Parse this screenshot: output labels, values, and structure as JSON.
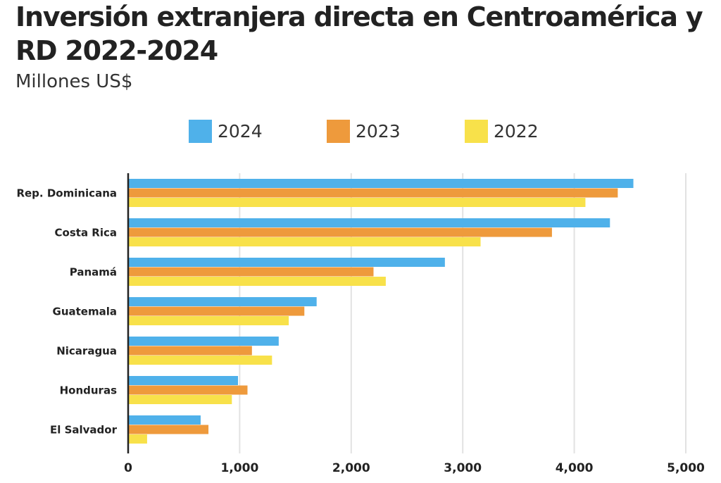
{
  "title": "Inversión extranjera directa en Centroamérica y RD 2022-2024",
  "subtitle": "Millones US$",
  "colors": {
    "2024": "#4fb1ea",
    "2023": "#ee9a3c",
    "2022": "#f8e14a",
    "axis": "#222222",
    "grid": "#e2e2e2"
  },
  "chart_data": {
    "type": "bar",
    "orientation": "horizontal",
    "title": "Inversión extranjera directa en Centroamérica y RD 2022-2024",
    "subtitle": "Millones US$",
    "categories": [
      "Rep. Dominicana",
      "Costa Rica",
      "Panamá",
      "Guatemala",
      "Nicaragua",
      "Honduras",
      "El Salvador"
    ],
    "series": [
      {
        "name": "2024",
        "values": [
          4530,
          4320,
          2840,
          1690,
          1350,
          985,
          650
        ]
      },
      {
        "name": "2023",
        "values": [
          4390,
          3800,
          2200,
          1580,
          1110,
          1070,
          720
        ]
      },
      {
        "name": "2022",
        "values": [
          4100,
          3160,
          2310,
          1440,
          1290,
          930,
          170
        ]
      }
    ],
    "xlim": [
      0,
      5000
    ],
    "xticks": [
      0,
      1000,
      2000,
      3000,
      4000,
      5000
    ],
    "xtick_labels": [
      "0",
      "1,000",
      "2,000",
      "3,000",
      "4,000",
      "5,000"
    ],
    "grid": true,
    "legend_position": "top"
  }
}
